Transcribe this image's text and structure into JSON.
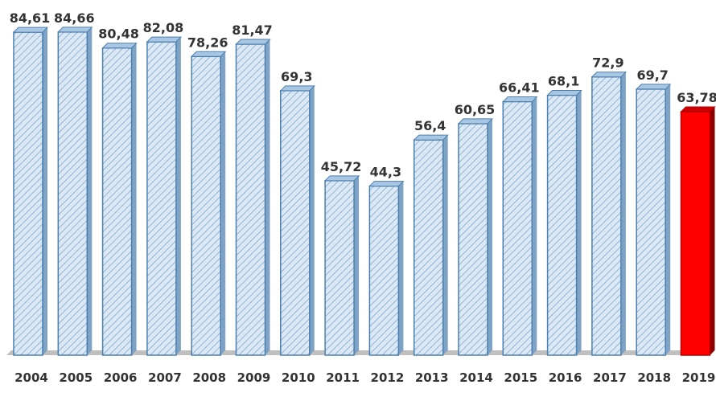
{
  "chart_data": {
    "type": "bar",
    "categories": [
      "2004",
      "2005",
      "2006",
      "2007",
      "2008",
      "2009",
      "2010",
      "2011",
      "2012",
      "2013",
      "2014",
      "2015",
      "2016",
      "2017",
      "2018",
      "2019"
    ],
    "values": [
      84.61,
      84.66,
      80.48,
      82.08,
      78.26,
      81.47,
      69.3,
      45.72,
      44.3,
      56.4,
      60.65,
      66.41,
      68.1,
      72.9,
      69.7,
      63.78
    ],
    "data_labels": [
      "84,61",
      "84,66",
      "80,48",
      "82,08",
      "78,26",
      "81,47",
      "69,3",
      "45,72",
      "44,3",
      "56,4",
      "60,65",
      "66,41",
      "68,1",
      "72,9",
      "69,7",
      "63,78"
    ],
    "highlight_index": 15,
    "colors": {
      "bar_fill": "#dce9f5",
      "bar_hatch": "#8fb4d6",
      "bar_stroke": "#4a7fb0",
      "bar_side": "#7fa3c4",
      "highlight_fill": "#ff0000",
      "highlight_side": "#8b0000",
      "floor": "#bfbfbf",
      "text": "#333333"
    },
    "title": "",
    "xlabel": "",
    "ylabel": "",
    "ylim": [
      0,
      90
    ],
    "grid": false,
    "legend": "none"
  }
}
